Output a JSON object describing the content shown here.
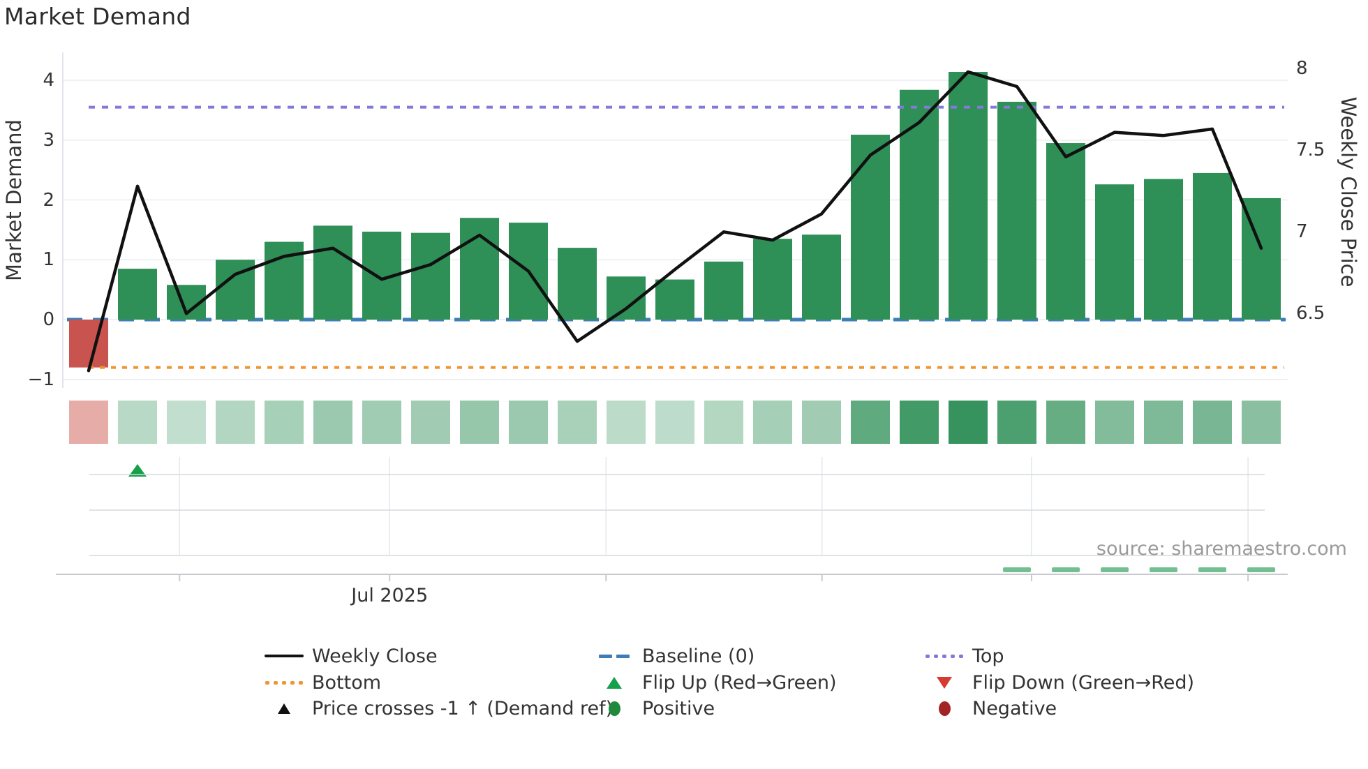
{
  "app": {
    "title": "Market Demand",
    "source": "source: sharemaestro.com"
  },
  "colors": {
    "bar_green": "#2e8f57",
    "bar_red": "#c9544f",
    "line_black": "#111111",
    "baseline_blue": "#3e7eb7",
    "top_purple": "#837ad8",
    "bottom_orange": "#f0942e",
    "flip_up_green": "#17a04b",
    "flip_down_red": "#d63b32",
    "positive_green": "#1f8a3d",
    "negative_red": "#a32424",
    "heat_green_rgb": "46,143,87",
    "heat_red": "rgba(205,90,82,0.5)",
    "streak_green": "rgba(70,170,110,0.75)",
    "grid": "#e9edf3",
    "lane_line": "#d6dade",
    "axis_line": "#c7cbd0",
    "spine": "#d9dee5",
    "month_line": "#e4e7ec",
    "text_dark": "#333333"
  },
  "chart_data": {
    "type": "bar+line",
    "title": "Market Demand",
    "weeks_count": 25,
    "series": [
      {
        "name": "Market Demand",
        "type": "bar",
        "axis": "left",
        "values": [
          -0.8,
          0.85,
          0.58,
          1.0,
          1.3,
          1.57,
          1.47,
          1.45,
          1.7,
          1.62,
          1.2,
          0.72,
          0.67,
          0.97,
          1.35,
          1.42,
          3.09,
          3.84,
          4.14,
          3.64,
          2.95,
          2.26,
          2.35,
          2.45,
          2.03
        ]
      },
      {
        "name": "Weekly Close",
        "type": "line",
        "axis": "right",
        "values": [
          6.15,
          7.28,
          6.5,
          6.74,
          6.85,
          6.9,
          6.71,
          6.8,
          6.98,
          6.76,
          6.33,
          6.53,
          6.77,
          7.0,
          6.95,
          7.11,
          7.47,
          7.67,
          7.98,
          7.89,
          7.46,
          7.61,
          7.59,
          7.63,
          6.9
        ]
      }
    ],
    "reference_lines": {
      "baseline": 0,
      "top": 3.55,
      "bottom": -0.8
    },
    "left_axis": {
      "title": "Market Demand",
      "ticks": [
        4,
        3,
        2,
        1,
        0,
        -1
      ]
    },
    "right_axis": {
      "title": "Weekly Close Price",
      "ticks": [
        8,
        7.5,
        7,
        6.5
      ]
    },
    "x_axis": {
      "ticks": [
        {
          "week_pos": 1.86,
          "label": ""
        },
        {
          "week_pos": 6.16,
          "label": "Jul 2025"
        },
        {
          "week_pos": 10.59,
          "label": ""
        },
        {
          "week_pos": 15.01,
          "label": ""
        },
        {
          "week_pos": 19.3,
          "label": ""
        },
        {
          "week_pos": 23.73,
          "label": ""
        }
      ]
    },
    "markers": {
      "flip_up_weeks": [
        2
      ],
      "flip_down_weeks": [],
      "price_cross_weeks": [],
      "positive_streak_weeks": [
        20,
        21,
        22,
        23,
        24,
        25
      ]
    },
    "heatmap": "demand intensity per week (same values as Market Demand bars)"
  },
  "legend": {
    "items": [
      {
        "label": "Weekly Close",
        "icon": "black-line"
      },
      {
        "label": "Baseline (0)",
        "icon": "blue-dashes"
      },
      {
        "label": "Top",
        "icon": "purple-dots"
      },
      {
        "label": "Bottom",
        "icon": "orange-dots"
      },
      {
        "label": "Flip Up (Red→Green)",
        "icon": "green-triangle-up"
      },
      {
        "label": "Flip Down (Green→Red)",
        "icon": "red-triangle-down"
      },
      {
        "label": "Price crosses -1 ↑ (Demand ref)",
        "icon": "black-triangle-up"
      },
      {
        "label": "Positive",
        "icon": "green-circle"
      },
      {
        "label": "Negative",
        "icon": "dark-red-circle"
      }
    ]
  }
}
